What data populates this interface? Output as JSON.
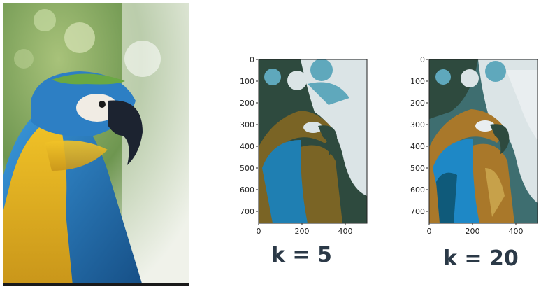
{
  "panels": [
    {
      "label": "k = 5",
      "y_ticks": [
        "0",
        "100",
        "200",
        "300",
        "400",
        "500",
        "600",
        "700"
      ],
      "x_ticks": [
        "0",
        "200",
        "400"
      ],
      "palette": [
        "#2e4a3e",
        "#1f7fb2",
        "#7a6425",
        "#5fa8bc",
        "#dbe4e6"
      ]
    },
    {
      "label": "k = 20",
      "y_ticks": [
        "0",
        "100",
        "200",
        "300",
        "400",
        "500",
        "600",
        "700"
      ],
      "x_ticks": [
        "0",
        "200",
        "400"
      ],
      "palette": [
        "#2e4a3e",
        "#1e88c6",
        "#a9782a",
        "#5fa8bc",
        "#dbe4e6",
        "#3e6e70",
        "#c7a14a",
        "#0f5a7a",
        "#e9eef0"
      ]
    }
  ],
  "colors": {
    "macaw_yellow": "#e6b21e",
    "macaw_blue": "#2a86c8",
    "macaw_green": "#5b9a3c",
    "background_bokeh": "#8db36a"
  },
  "icons": [
    "macaw-photo"
  ]
}
